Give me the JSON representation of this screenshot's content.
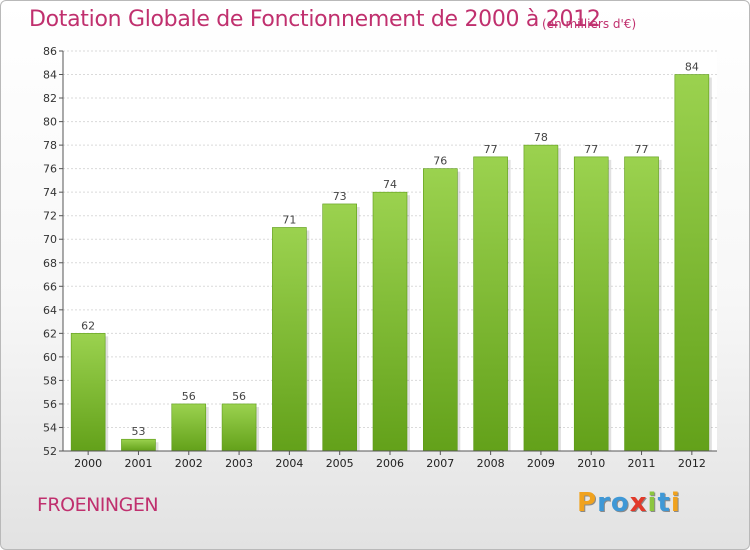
{
  "header": {
    "title": "Dotation Globale de Fonctionnement de 2000 à 2012",
    "unit": "(en milliers d'€)"
  },
  "footer": {
    "commune": "FROENINGEN",
    "logo_letters": [
      "P",
      "r",
      "o",
      "x",
      "i",
      "t",
      "i"
    ],
    "logo_colors": [
      "#f0a21e",
      "#3f98d6",
      "#3f98d6",
      "#e23a2a",
      "#8cc63f",
      "#3f98d6",
      "#f0a21e"
    ]
  },
  "chart_data": {
    "type": "bar",
    "title": "Dotation Globale de Fonctionnement de 2000 à 2012",
    "categories": [
      "2000",
      "2001",
      "2002",
      "2003",
      "2004",
      "2005",
      "2006",
      "2007",
      "2008",
      "2009",
      "2010",
      "2011",
      "2012"
    ],
    "values": [
      62,
      53,
      56,
      56,
      71,
      73,
      74,
      76,
      77,
      78,
      77,
      77,
      84
    ],
    "ylim": [
      52,
      86
    ],
    "yticks": [
      "52",
      "54",
      "56",
      "58",
      "60",
      "62",
      "64",
      "66",
      "68",
      "70",
      "72",
      "74",
      "76",
      "78",
      "80",
      "82",
      "84",
      "86"
    ],
    "grid": true,
    "bar_color_light": "#9bd24f",
    "bar_color_dark": "#63a11a"
  }
}
